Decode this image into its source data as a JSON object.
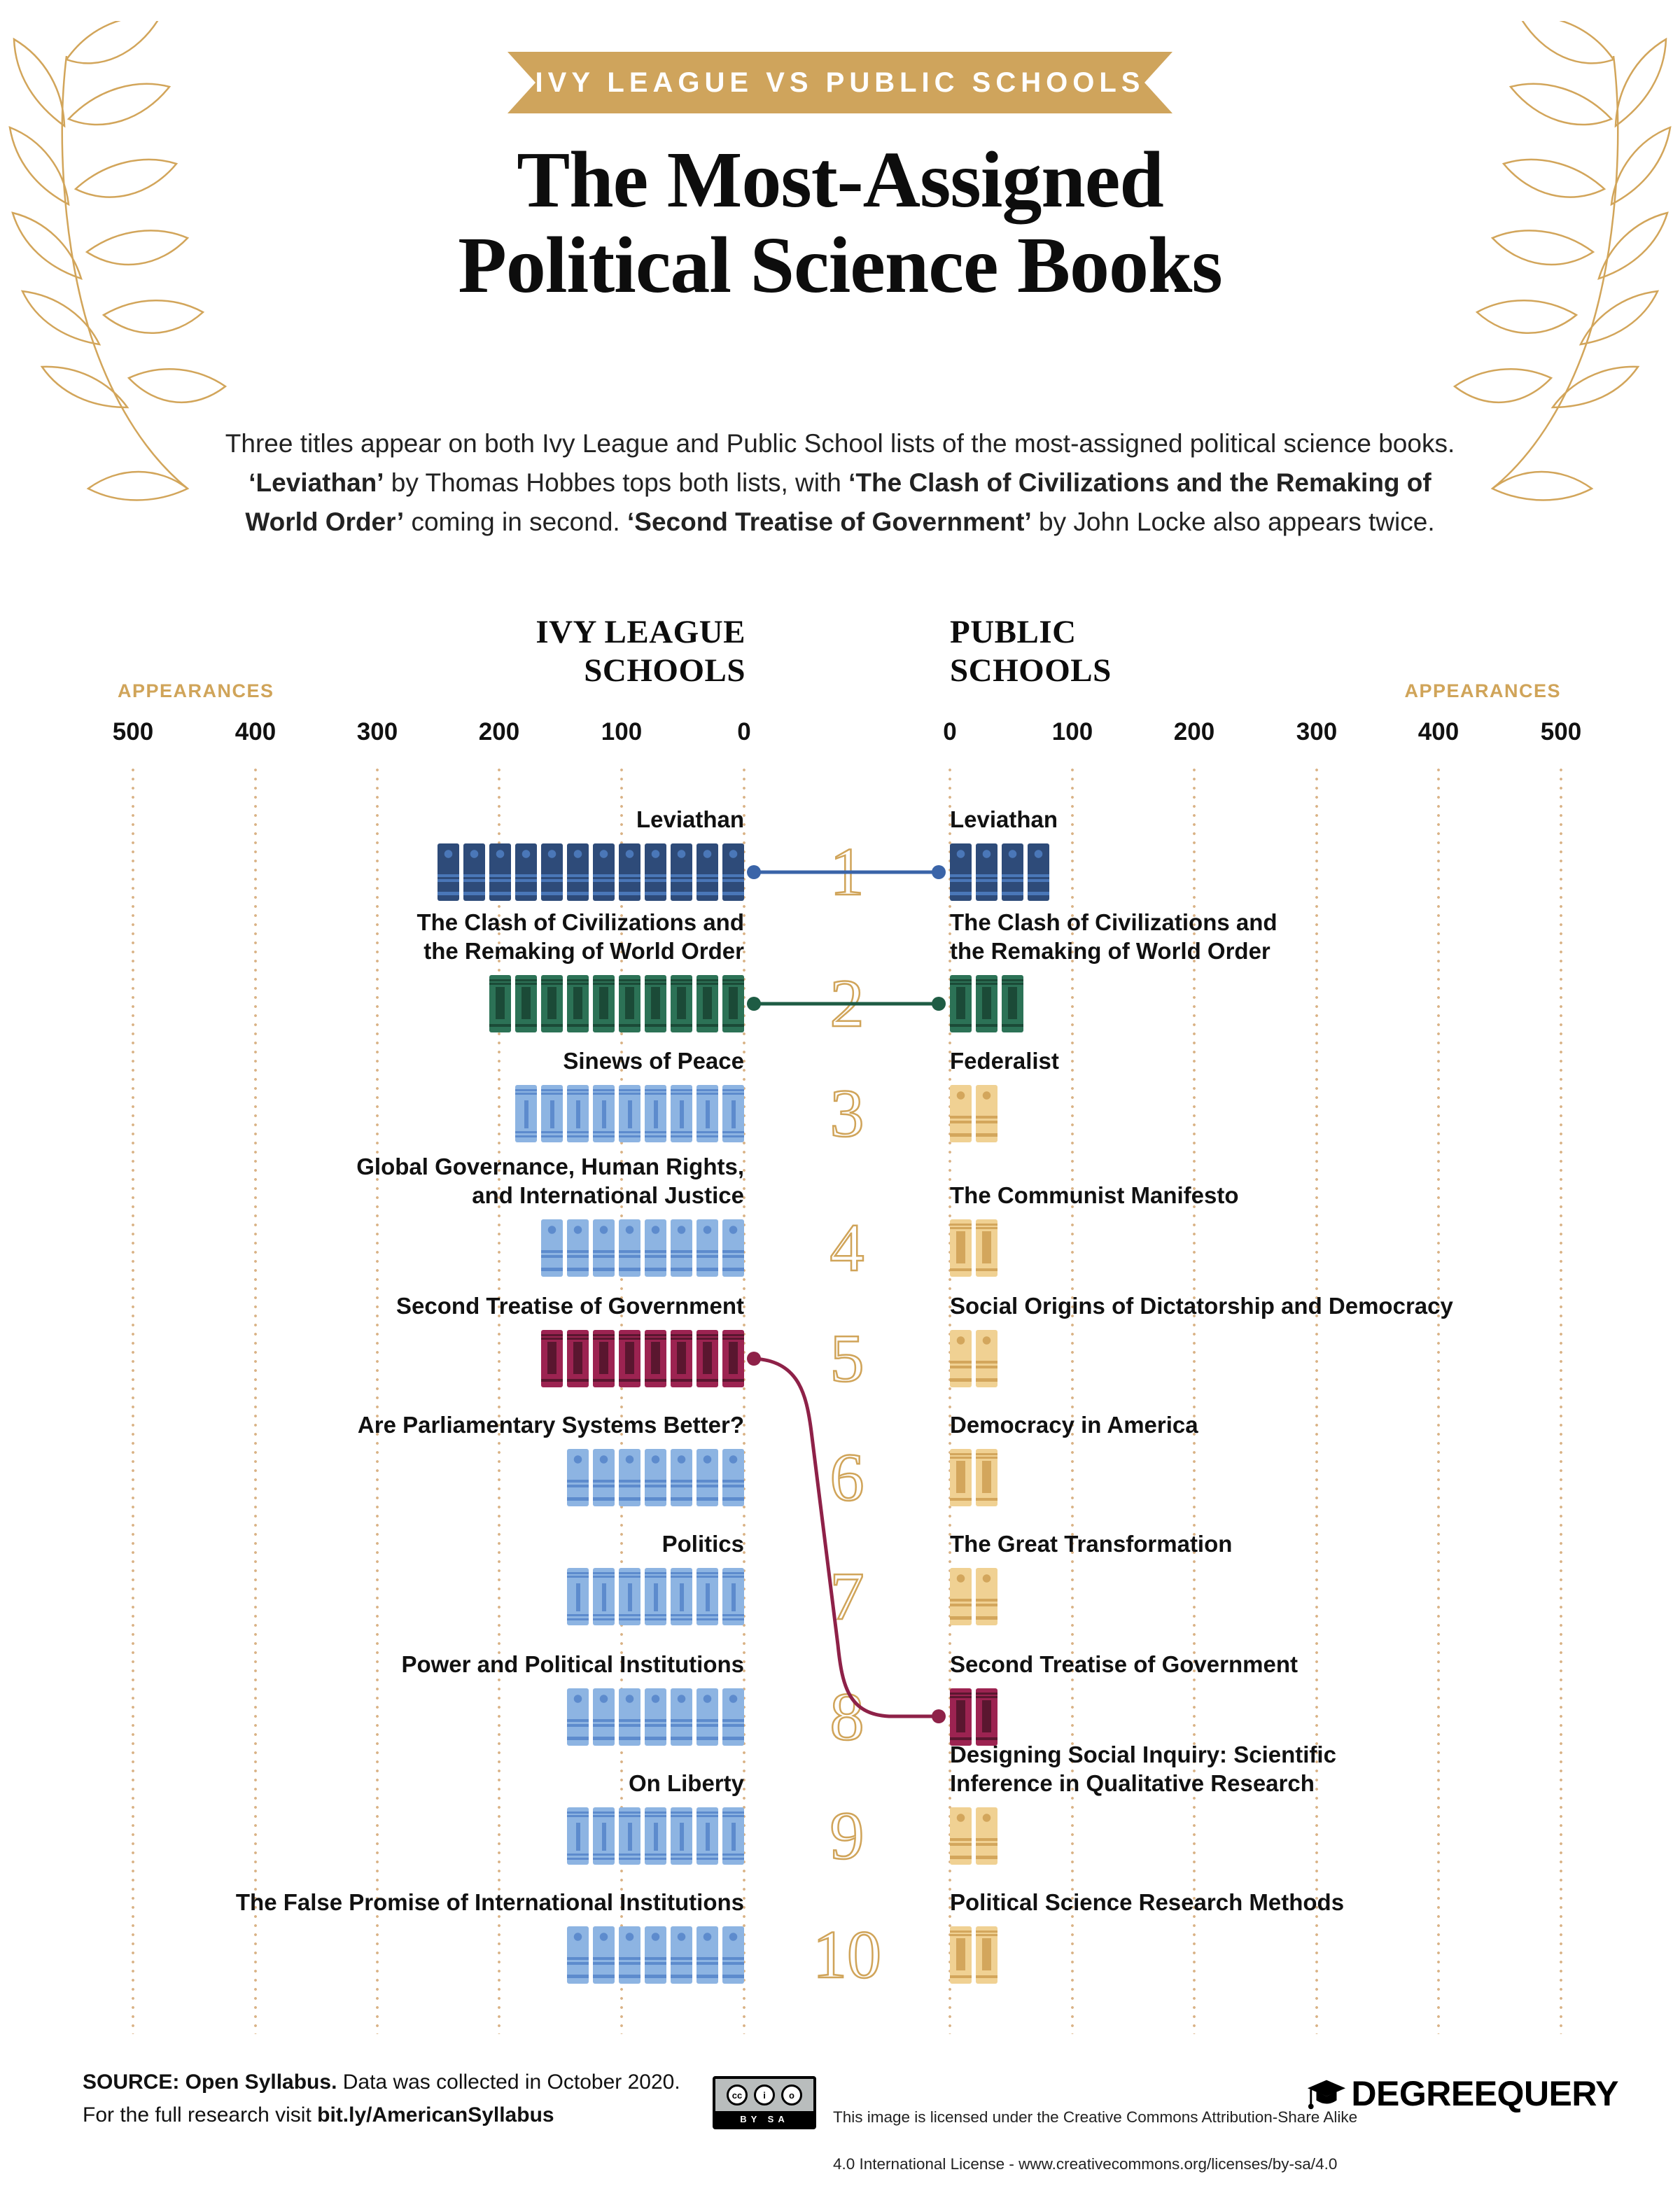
{
  "banner": {
    "label": "IVY LEAGUE VS PUBLIC SCHOOLS"
  },
  "title": {
    "line1": "The Most-Assigned",
    "line2": "Political Science Books"
  },
  "intro_segments": [
    {
      "text": "Three titles appear on both Ivy League and Public School lists of the most-assigned political science books. ",
      "bold": false
    },
    {
      "text": "‘Leviathan’",
      "bold": true
    },
    {
      "text": " by Thomas Hobbes tops both lists, with ",
      "bold": false
    },
    {
      "text": "‘The Clash of Civilizations and the Remaking of World Order’",
      "bold": true
    },
    {
      "text": " coming in second. ",
      "bold": false
    },
    {
      "text": "‘Second Treatise of Government’",
      "bold": true
    },
    {
      "text": " by John Locke also appears twice.",
      "bold": false
    }
  ],
  "columns": {
    "left_header": "IVY LEAGUE\nSCHOOLS",
    "right_header": "PUBLIC\nSCHOOLS",
    "left_axis_label": "APPEARANCES",
    "right_axis_label": "APPEARANCES"
  },
  "chart_data": {
    "type": "bar",
    "subtype": "pictogram-diverging-ranked-list",
    "unit": "appearances",
    "legend_position": "none",
    "grid": "dotted-vertical",
    "axes": {
      "left_ticks": [
        "500",
        "400",
        "300",
        "200",
        "100",
        "0"
      ],
      "right_ticks": [
        "0",
        "100",
        "200",
        "300",
        "400",
        "500"
      ],
      "max": 500
    },
    "rows": [
      {
        "rank": "1",
        "ivy": {
          "title": "Leviathan",
          "books": 12,
          "approx_appearances": 254,
          "color": "navy",
          "pattern": "dot"
        },
        "public": {
          "title": "Leviathan",
          "books": 4,
          "approx_appearances": 79,
          "color": "navy",
          "pattern": "dot"
        },
        "connector": "blue-straight"
      },
      {
        "rank": "2",
        "ivy": {
          "title": "The Clash of Civilizations and\nthe Remaking of World Order",
          "books": 10,
          "approx_appearances": 215,
          "color": "green",
          "pattern": "vbar"
        },
        "public": {
          "title": "The Clash of Civilizations and\nthe Remaking of World Order",
          "books": 3,
          "approx_appearances": 67,
          "color": "green",
          "pattern": "vbar"
        },
        "connector": "green-straight"
      },
      {
        "rank": "3",
        "ivy": {
          "title": "Sinews of Peace",
          "books": 9,
          "approx_appearances": 198,
          "color": "lightblue",
          "pattern": "vline"
        },
        "public": {
          "title": "Federalist",
          "books": 2,
          "approx_appearances": 43,
          "color": "tan",
          "pattern": "dot"
        },
        "connector": "none"
      },
      {
        "rank": "4",
        "ivy": {
          "title": "Global Governance, Human Rights,\nand International Justice",
          "books": 8,
          "approx_appearances": 182,
          "color": "lightblue",
          "pattern": "dot"
        },
        "public": {
          "title": "The Communist Manifesto",
          "books": 2,
          "approx_appearances": 42,
          "color": "tan",
          "pattern": "vbar"
        },
        "connector": "none"
      },
      {
        "rank": "5",
        "ivy": {
          "title": "Second Treatise of Government",
          "books": 8,
          "approx_appearances": 151,
          "color": "maroon",
          "pattern": "vbar"
        },
        "public": {
          "title": "Social Origins of Dictatorship and Democracy",
          "books": 2,
          "approx_appearances": 42,
          "color": "tan",
          "pattern": "dot"
        },
        "connector": "maroon-curve-to-public-rank-8"
      },
      {
        "rank": "6",
        "ivy": {
          "title": "Are Parliamentary Systems Better?",
          "books": 7,
          "approx_appearances": 147,
          "color": "lightblue",
          "pattern": "dot"
        },
        "public": {
          "title": "Democracy in America",
          "books": 2,
          "approx_appearances": 41,
          "color": "tan",
          "pattern": "vbar"
        },
        "connector": "none"
      },
      {
        "rank": "7",
        "ivy": {
          "title": "Politics",
          "books": 7,
          "approx_appearances": 144,
          "color": "lightblue",
          "pattern": "vline"
        },
        "public": {
          "title": "The Great Transformation",
          "books": 2,
          "approx_appearances": 41,
          "color": "tan",
          "pattern": "dot"
        },
        "connector": "none"
      },
      {
        "rank": "8",
        "ivy": {
          "title": "Power and Political Institutions",
          "books": 7,
          "approx_appearances": 142,
          "color": "lightblue",
          "pattern": "dot"
        },
        "public": {
          "title": "Second Treatise of Government",
          "books": 2,
          "approx_appearances": 41,
          "color": "maroon",
          "pattern": "vbar"
        },
        "connector": "none"
      },
      {
        "rank": "9",
        "ivy": {
          "title": "On Liberty",
          "books": 7,
          "approx_appearances": 138,
          "color": "lightblue",
          "pattern": "vline"
        },
        "public": {
          "title": "Designing Social Inquiry: Scientific\nInference in Qualitative Research",
          "books": 2,
          "approx_appearances": 40,
          "color": "tan",
          "pattern": "dot"
        },
        "connector": "none"
      },
      {
        "rank": "10",
        "ivy": {
          "title": "The False Promise of International Institutions",
          "books": 7,
          "approx_appearances": 134,
          "color": "lightblue",
          "pattern": "dot"
        },
        "public": {
          "title": "Political Science Research Methods",
          "books": 2,
          "approx_appearances": 40,
          "color": "tan",
          "pattern": "vbar"
        },
        "connector": "none"
      }
    ]
  },
  "footer": {
    "source_segments": [
      {
        "text": "SOURCE: Open Syllabus.",
        "bold": true
      },
      {
        "text": " Data was collected in October 2020.",
        "bold": false
      },
      {
        "text": "\nFor the full research visit ",
        "bold": false
      },
      {
        "text": "bit.ly/AmericanSyllabus",
        "bold": true
      }
    ],
    "license_line1": "This image is licensed under the Creative Commons Attribution-Share Alike",
    "license_line2": "4.0 International License - www.creativecommons.org/licenses/by-sa/4.0",
    "cc_icons": [
      "CC",
      "BY",
      "SA"
    ],
    "cc_badge_label": "BY SA",
    "logo_text": "DEGREEQUERY"
  },
  "colors": {
    "gold": "#d0a459",
    "banner_gold": "#cfa45c",
    "navy": "#2e4b79",
    "navy_accent": "#4a77b8",
    "green": "#2c7256",
    "green_dark": "#1b4a37",
    "light_blue": "#8db4e2",
    "light_blue_accent": "#5d8bcd",
    "maroon": "#9c2351",
    "maroon_dark": "#5a162f",
    "tan": "#f0d193",
    "tan_dark": "#d3a65c",
    "connector_blue": "#3a64a8",
    "connector_green": "#1e5c44",
    "connector_maroon": "#8e2148",
    "grid_dot": "#d9b285"
  }
}
